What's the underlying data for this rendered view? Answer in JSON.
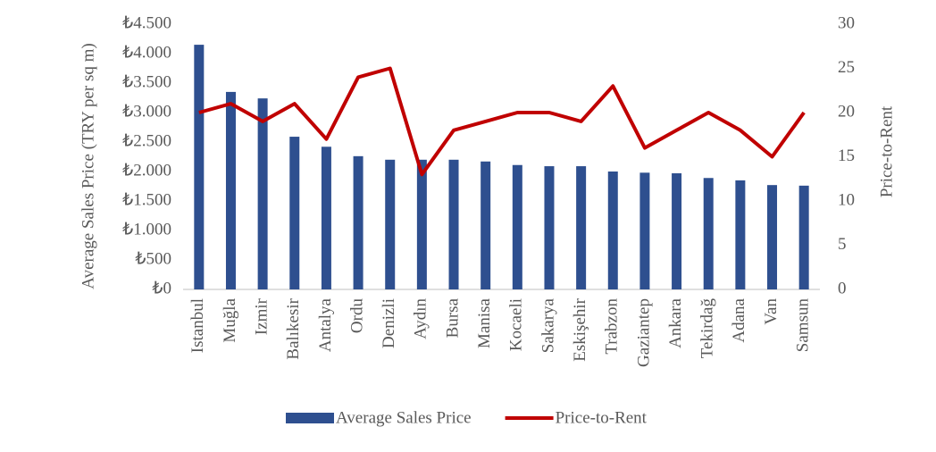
{
  "chart_data": {
    "type": "combo",
    "categories": [
      "Istanbul",
      "Muğla",
      "Izmir",
      "Balıkesir",
      "Antalya",
      "Ordu",
      "Denizli",
      "Aydın",
      "Bursa",
      "Manisa",
      "Kocaeli",
      "Sakarya",
      "Eskişehir",
      "Trabzon",
      "Gaziantep",
      "Ankara",
      "Tekirdağ",
      "Adana",
      "Van",
      "Samsun"
    ],
    "series": [
      {
        "name": "Average Sales Price",
        "type": "bar",
        "color": "#2e4f8f",
        "values": [
          4150,
          3350,
          3240,
          2590,
          2420,
          2260,
          2200,
          2200,
          2200,
          2170,
          2110,
          2090,
          2090,
          2000,
          1980,
          1970,
          1890,
          1850,
          1770,
          1760
        ]
      },
      {
        "name": "Price-to-Rent",
        "type": "line",
        "axis": "y2",
        "color": "#c00000",
        "values": [
          20,
          21,
          19,
          21,
          17,
          24,
          25,
          13,
          18,
          19,
          20,
          20,
          19,
          23,
          16,
          18,
          20,
          18,
          15,
          20
        ]
      }
    ],
    "y_label": "Average Sales Price (TRY per sq m)",
    "y2_label": "Price-to-Rent",
    "ylim": [
      0,
      4500
    ],
    "yticks": [
      {
        "value": 0,
        "label": "₺0"
      },
      {
        "value": 500,
        "label": "₺500"
      },
      {
        "value": 1000,
        "label": "₺1.000"
      },
      {
        "value": 1500,
        "label": "₺1.500"
      },
      {
        "value": 2000,
        "label": "₺2.000"
      },
      {
        "value": 2500,
        "label": "₺2.500"
      },
      {
        "value": 3000,
        "label": "₺3.000"
      },
      {
        "value": 3500,
        "label": "₺3.500"
      },
      {
        "value": 4000,
        "label": "₺4.000"
      },
      {
        "value": 4500,
        "label": "₺4.500"
      }
    ],
    "y2lim": [
      0,
      30
    ],
    "y2ticks": [
      0,
      5,
      10,
      15,
      20,
      25,
      30
    ],
    "legend": "bottom"
  }
}
